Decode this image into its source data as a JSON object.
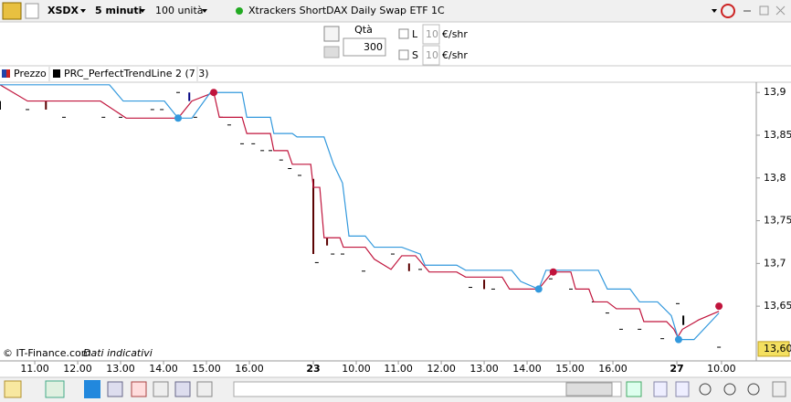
{
  "toolbar": {
    "symbol": "XSDX",
    "timeframe": "5 minuti",
    "quantity": "100 unità",
    "instrument": "Xtrackers ShortDAX Daily Swap ETF 1C"
  },
  "order": {
    "qty_label": "Qtà",
    "qty": "300",
    "long": {
      "label": "L",
      "value": "10",
      "unit": "€/shr"
    },
    "short": {
      "label": "S",
      "value": "10",
      "unit": "€/shr"
    }
  },
  "chart_data": {
    "type": "line",
    "xlim": [
      -0.81,
      16.81
    ],
    "ylim": [
      13.586,
      13.912
    ],
    "xticks": [
      {
        "value": 0,
        "label": "11.00"
      },
      {
        "value": 1,
        "label": "12.00"
      },
      {
        "value": 2,
        "label": "13.00"
      },
      {
        "value": 3,
        "label": "14.00"
      },
      {
        "value": 4,
        "label": "15.00"
      },
      {
        "value": 5,
        "label": "16.00"
      },
      {
        "value": 6.49,
        "label": "23"
      },
      {
        "value": 7.49,
        "label": "10.00"
      },
      {
        "value": 8.47,
        "label": "11.00"
      },
      {
        "value": 9.47,
        "label": "12.00"
      },
      {
        "value": 10.47,
        "label": "13.00"
      },
      {
        "value": 11.47,
        "label": "14.00"
      },
      {
        "value": 12.47,
        "label": "15.00"
      },
      {
        "value": 13.47,
        "label": "16.00"
      },
      {
        "value": 14.96,
        "label": "27"
      },
      {
        "value": 16,
        "label": "10.00"
      }
    ],
    "yticks": [
      {
        "value": 13.9,
        "label": "13,9"
      },
      {
        "value": 13.85,
        "label": "13,85"
      },
      {
        "value": 13.8,
        "label": "13,8"
      },
      {
        "value": 13.75,
        "label": "13,75"
      },
      {
        "value": 13.7,
        "label": "13,7"
      },
      {
        "value": 13.65,
        "label": "13,65"
      }
    ],
    "last_price": {
      "value": 13.6,
      "label": "13,60"
    },
    "price": {
      "name": "Prezzo",
      "dashes": {
        "x": [
          -0.17,
          0.68,
          1.6,
          2.0,
          2.74,
          2.96,
          3.34,
          3.74,
          4.34,
          4.53,
          4.83,
          5.09,
          5.3,
          5.49,
          5.74,
          5.94,
          6.17,
          6.57,
          6.94,
          7.17,
          7.66,
          8.34,
          8.98,
          10.15,
          10.68,
          12.02,
          12.49,
          13.02,
          13.34,
          13.66,
          14.09,
          14.62,
          14.98,
          15.94
        ],
        "values": [
          13.88,
          13.871,
          13.871,
          13.871,
          13.88,
          13.88,
          13.9,
          13.871,
          13.871,
          13.862,
          13.84,
          13.84,
          13.832,
          13.832,
          13.821,
          13.811,
          13.803,
          13.701,
          13.711,
          13.711,
          13.691,
          13.711,
          13.693,
          13.672,
          13.67,
          13.682,
          13.67,
          13.655,
          13.642,
          13.623,
          13.623,
          13.612,
          13.653,
          13.602
        ]
      },
      "bars": [
        {
          "x": -0.81,
          "high": 13.89,
          "low": 13.88,
          "color": "#000000"
        },
        {
          "x": 0.26,
          "high": 13.89,
          "low": 13.88,
          "color": "#5a0000"
        },
        {
          "x": 3.6,
          "high": 13.9,
          "low": 13.89,
          "color": "#000080"
        },
        {
          "x": 6.49,
          "high": 13.799,
          "low": 13.711,
          "color": "#5a0000"
        },
        {
          "x": 6.81,
          "high": 13.73,
          "low": 13.721,
          "color": "#5a0000"
        },
        {
          "x": 8.72,
          "high": 13.7,
          "low": 13.691,
          "color": "#5a0000"
        },
        {
          "x": 10.47,
          "high": 13.681,
          "low": 13.67,
          "color": "#5a0000"
        },
        {
          "x": 15.11,
          "high": 13.639,
          "low": 13.628,
          "color": "#000000"
        }
      ]
    },
    "indicator": {
      "name": "PRC_PerfectTrendLine 2 (7 3)",
      "lines": [
        {
          "color": "#c0143c",
          "x": [
            -0.81,
            -0.17,
            1.53,
            2.13,
            3.34,
            3.66,
            4.17,
            4.3,
            4.83,
            4.94,
            5.49,
            5.57,
            5.89,
            6.0,
            6.43,
            6.49,
            6.64,
            6.74,
            7.11,
            7.19,
            7.7,
            7.91,
            8.3,
            8.55,
            8.87,
            9.19,
            9.83,
            10.04,
            10.89,
            11.06,
            11.74,
            12.06,
            12.49,
            12.6,
            12.91,
            13.02,
            13.34,
            13.55,
            14.09,
            14.19,
            14.72,
            14.89,
            14.98,
            15.09,
            15.47,
            15.94
          ],
          "values": [
            13.909,
            13.89,
            13.89,
            13.87,
            13.87,
            13.89,
            13.9,
            13.871,
            13.871,
            13.852,
            13.852,
            13.832,
            13.832,
            13.816,
            13.816,
            13.789,
            13.789,
            13.73,
            13.73,
            13.719,
            13.719,
            13.705,
            13.693,
            13.709,
            13.709,
            13.69,
            13.69,
            13.684,
            13.684,
            13.67,
            13.67,
            13.69,
            13.69,
            13.67,
            13.67,
            13.655,
            13.655,
            13.647,
            13.647,
            13.632,
            13.632,
            13.623,
            13.614,
            13.623,
            13.634,
            13.644
          ]
        },
        {
          "color": "#3399dd",
          "x": [
            -0.81,
            1.74,
            2.06,
            3.02,
            3.34,
            3.66,
            4.09,
            4.83,
            4.94,
            5.49,
            5.57,
            6.0,
            6.11,
            6.74,
            6.96,
            7.17,
            7.32,
            7.7,
            7.91,
            8.55,
            8.98,
            9.09,
            9.83,
            10.04,
            11.11,
            11.32,
            11.74,
            11.91,
            13.13,
            13.34,
            13.87,
            14.09,
            14.51,
            14.83,
            15.0,
            15.36,
            15.94
          ],
          "values": [
            13.909,
            13.909,
            13.89,
            13.89,
            13.87,
            13.87,
            13.9,
            13.9,
            13.871,
            13.871,
            13.852,
            13.852,
            13.848,
            13.848,
            13.816,
            13.794,
            13.732,
            13.732,
            13.719,
            13.719,
            13.711,
            13.698,
            13.698,
            13.692,
            13.692,
            13.679,
            13.67,
            13.692,
            13.692,
            13.67,
            13.67,
            13.655,
            13.655,
            13.639,
            13.611,
            13.611,
            13.642
          ]
        }
      ],
      "signals": [
        {
          "x": 3.34,
          "value": 13.87,
          "color": "#3399dd"
        },
        {
          "x": 11.74,
          "value": 13.67,
          "color": "#3399dd"
        },
        {
          "x": 15.0,
          "value": 13.611,
          "color": "#3399dd"
        },
        {
          "x": 4.17,
          "value": 13.9,
          "color": "#c0143c"
        },
        {
          "x": 12.08,
          "value": 13.69,
          "color": "#c0143c"
        },
        {
          "x": 15.94,
          "value": 13.65,
          "color": "#c0143c"
        }
      ]
    },
    "source": "© IT-Finance.com",
    "note": "Dati indicativi"
  }
}
